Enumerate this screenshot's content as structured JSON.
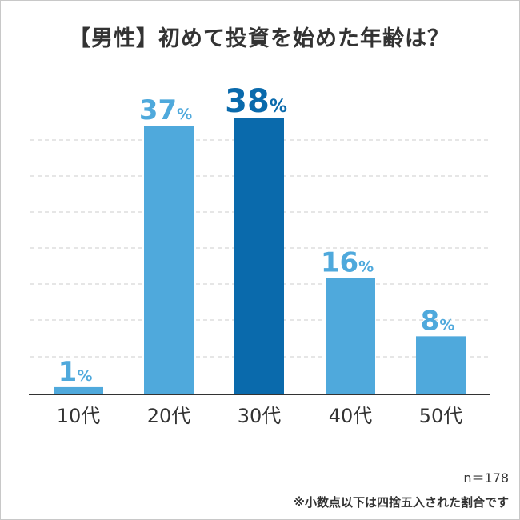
{
  "title": "【男性】初めて投資を始めた年齢は？",
  "sample_size": "n＝178",
  "footnote": "※小数点以下は四捨五入された割合です",
  "colors": {
    "bar": "#4fa9dc",
    "highlight_bar": "#0a6aac",
    "grid": "#cccccc",
    "axis": "#333333",
    "text": "#333333"
  },
  "chart_data": {
    "type": "bar",
    "title": "【男性】初めて投資を始めた年齢は？",
    "xlabel": "",
    "ylabel": "",
    "categories": [
      "10代",
      "20代",
      "30代",
      "40代",
      "50代"
    ],
    "values": [
      1,
      37,
      38,
      16,
      8
    ],
    "value_labels": [
      "1",
      "37",
      "38",
      "16",
      "8"
    ],
    "unit": "%",
    "highlight_index": 2,
    "ylim": [
      0,
      38
    ],
    "grid": true,
    "legend": "none"
  }
}
